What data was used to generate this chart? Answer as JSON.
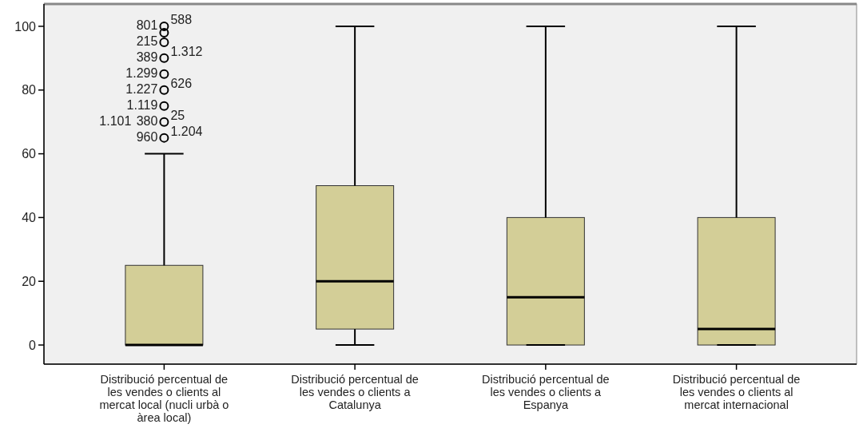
{
  "chart_data": {
    "type": "box",
    "categories": [
      "Distribució percentual de les vendes o clients al mercat local (nucli urbà o àrea local)",
      "Distribució percentual de les vendes o clients a Catalunya",
      "Distribució percentual de les vendes o clients a Espanya",
      "Distribució percentual de les vendes o clients al mercat internacional"
    ],
    "color": "#d3ce97",
    "series": [
      {
        "type": "scatter",
        "marker": "circle",
        "color": "#000000",
        "x": [
          "Distribució percentual de les vendes o clients al mercat local (nucli urbà o àrea local)",
          "Distribució percentual de les vendes o clients al mercat local (nucli urbà o àrea local)",
          "Distribució percentual de les vendes o clients al mercat local (nucli urbà o àrea local)",
          "Distribució percentual de les vendes o clients al mercat local (nucli urbà o àrea local)",
          "Distribució percentual de les vendes o clients al mercat local (nucli urbà o àrea local)",
          "Distribució percentual de les vendes o clients al mercat local (nucli urbà o àrea local)",
          "Distribució percentual de les vendes o clients al mercat local (nucli urbà o àrea local)",
          "Distribució percentual de les vendes o clients al mercat local (nucli urbà o àrea local)",
          "Distribució percentual de les vendes o clients al mercat local (nucli urbà o àrea local)"
        ],
        "values": [
          65,
          70,
          75,
          80,
          85,
          90,
          95,
          98,
          100
        ]
      }
    ],
    "boxes": [
      {
        "low": 0,
        "q1": 0,
        "median": 0,
        "q3": 25,
        "high": 60
      },
      {
        "low": 0,
        "q1": 5,
        "median": 20,
        "q3": 50,
        "high": 100
      },
      {
        "low": 0,
        "q1": 0,
        "median": 15,
        "q3": 40,
        "high": 100
      },
      {
        "low": 0,
        "q1": 0,
        "median": 5,
        "q3": 40,
        "high": 100
      }
    ],
    "ylim": [
      -6,
      107
    ],
    "yticks": [
      0,
      20,
      40,
      60,
      80,
      100
    ],
    "grid": false,
    "annotations": [
      {
        "text": "801",
        "x": "Distribució percentual de les vendes o clients al mercat local (nucli urbà o àrea local)",
        "y": 100
      },
      {
        "text": "588",
        "x": "Distribució percentual de les vendes o clients al mercat local (nucli urbà o àrea local)",
        "y": 100
      },
      {
        "text": "215",
        "x": "Distribució percentual de les vendes o clients al mercat local (nucli urbà o àrea local)",
        "y": 95
      },
      {
        "text": "389",
        "x": "Distribució percentual de les vendes o clients al mercat local (nucli urbà o àrea local)",
        "y": 90
      },
      {
        "text": "1.312",
        "x": "Distribució percentual de les vendes o clients al mercat local (nucli urbà o àrea local)",
        "y": 90
      },
      {
        "text": "1.299",
        "x": "Distribució percentual de les vendes o clients al mercat local (nucli urbà o àrea local)",
        "y": 85
      },
      {
        "text": "1.227",
        "x": "Distribució percentual de les vendes o clients al mercat local (nucli urbà o àrea local)",
        "y": 80
      },
      {
        "text": "626",
        "x": "Distribució percentual de les vendes o clients al mercat local (nucli urbà o àrea local)",
        "y": 80
      },
      {
        "text": "1.119",
        "x": "Distribució percentual de les vendes o clients al mercat local (nucli urbà o àrea local)",
        "y": 75
      },
      {
        "text": "380",
        "x": "Distribució percentual de les vendes o clients al mercat local (nucli urbà o àrea local)",
        "y": 70
      },
      {
        "text": "25",
        "x": "Distribució percentual de les vendes o clients al mercat local (nucli urbà o àrea local)",
        "y": 70
      },
      {
        "text": "1.101",
        "x": "Distribució percentual de les vendes o clients al mercat local (nucli urbà o àrea local)",
        "y": 70
      },
      {
        "text": "960",
        "x": "Distribució percentual de les vendes o clients al mercat local (nucli urbà o àrea local)",
        "y": 65
      },
      {
        "text": "1.204",
        "x": "Distribució percentual de les vendes o clients al mercat local (nucli urbà o àrea local)",
        "y": 65
      }
    ]
  }
}
